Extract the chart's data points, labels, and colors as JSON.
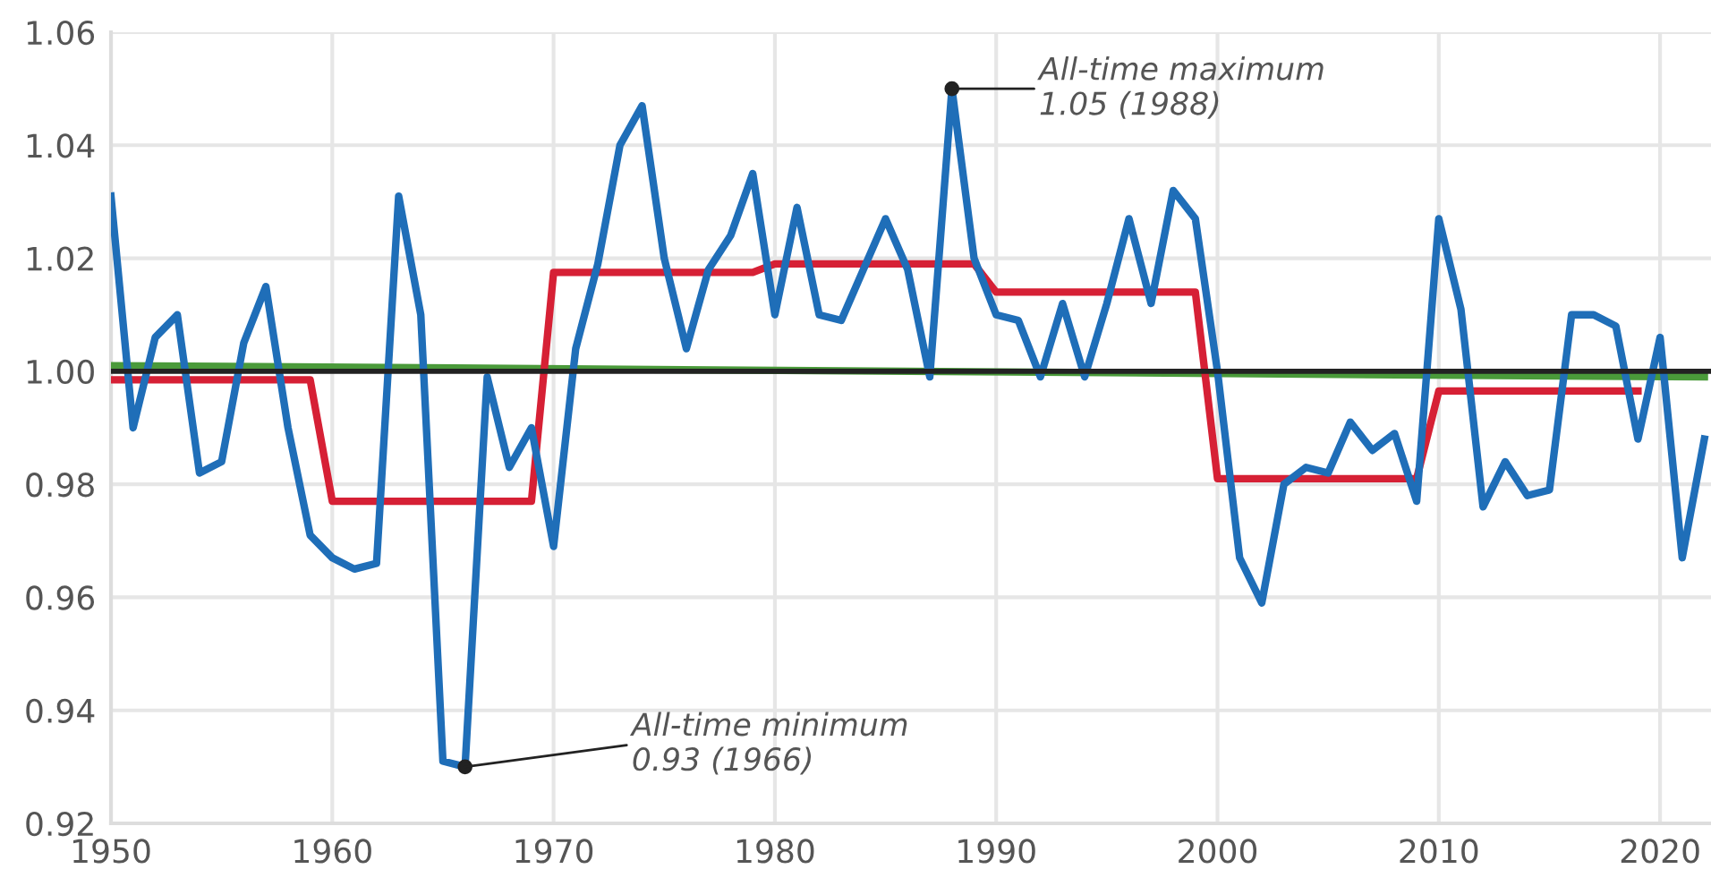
{
  "chart_data": {
    "type": "line",
    "x": [
      1950,
      1951,
      1952,
      1953,
      1954,
      1955,
      1956,
      1957,
      1958,
      1959,
      1960,
      1961,
      1962,
      1963,
      1964,
      1965,
      1966,
      1967,
      1968,
      1969,
      1970,
      1971,
      1972,
      1973,
      1974,
      1975,
      1976,
      1977,
      1978,
      1979,
      1980,
      1981,
      1982,
      1983,
      1984,
      1985,
      1986,
      1987,
      1988,
      1989,
      1990,
      1991,
      1992,
      1993,
      1994,
      1995,
      1996,
      1997,
      1998,
      1999,
      2000,
      2001,
      2002,
      2003,
      2004,
      2005,
      2006,
      2007,
      2008,
      2009,
      2010,
      2011,
      2012,
      2013,
      2014,
      2015,
      2016,
      2017,
      2018,
      2019,
      2020,
      2021,
      2022
    ],
    "series": [
      {
        "color": "#1f6eb8",
        "values": [
          1.031,
          0.99,
          1.006,
          1.01,
          0.982,
          0.984,
          1.005,
          1.015,
          0.99,
          0.971,
          0.967,
          0.965,
          0.966,
          1.031,
          1.01,
          0.931,
          0.93,
          0.999,
          0.983,
          0.99,
          0.969,
          1.004,
          1.019,
          1.04,
          1.047,
          1.02,
          1.004,
          1.018,
          1.024,
          1.035,
          1.01,
          1.029,
          1.01,
          1.009,
          1.018,
          1.027,
          1.018,
          0.999,
          1.05,
          1.02,
          1.01,
          1.009,
          0.999,
          1.012,
          0.999,
          1.012,
          1.027,
          1.012,
          1.032,
          1.027,
          1.0,
          0.967,
          0.959,
          0.98,
          0.983,
          0.982,
          0.991,
          0.986,
          0.989,
          0.977,
          1.027,
          1.011,
          0.976,
          0.984,
          0.978,
          0.979,
          1.01,
          1.01,
          1.008,
          0.988,
          1.006,
          0.967,
          0.988
        ]
      },
      {
        "color": "#d62035",
        "values": [
          0.9985,
          0.9985,
          0.9985,
          0.9985,
          0.9985,
          0.9985,
          0.9985,
          0.9985,
          0.9985,
          0.9985,
          0.977,
          0.977,
          0.977,
          0.977,
          0.977,
          0.977,
          0.977,
          0.977,
          0.977,
          0.977,
          1.0175,
          1.0175,
          1.0175,
          1.0175,
          1.0175,
          1.0175,
          1.0175,
          1.0175,
          1.0175,
          1.0175,
          1.019,
          1.019,
          1.019,
          1.019,
          1.019,
          1.019,
          1.019,
          1.019,
          1.019,
          1.019,
          1.014,
          1.014,
          1.014,
          1.014,
          1.014,
          1.014,
          1.014,
          1.014,
          1.014,
          1.014,
          0.981,
          0.981,
          0.981,
          0.981,
          0.981,
          0.981,
          0.981,
          0.981,
          0.981,
          0.981,
          0.9965,
          0.9965,
          0.9965,
          0.9965,
          0.9965,
          0.9965,
          0.9965,
          0.9965,
          0.9965,
          0.9965,
          null,
          null,
          null
        ]
      },
      {
        "color": "#4a9a3a",
        "x": [
          1950,
          2022
        ],
        "values": [
          1.001,
          0.999
        ]
      }
    ],
    "ref_lines": [
      {
        "axis": "y",
        "value": 1.0,
        "color": "#222222"
      }
    ],
    "annotations": [
      {
        "text": "All-time maximum\n1.05 (1988)",
        "x": 1988,
        "y": 1.05
      },
      {
        "text": "All-time minimum\n0.93 (1966)",
        "x": 1966,
        "y": 0.93
      }
    ],
    "xlim": [
      1950,
      2022.3
    ],
    "ylim": [
      0.92,
      1.06
    ],
    "xticks": [
      1950,
      1960,
      1970,
      1980,
      1990,
      2000,
      2010,
      2020
    ],
    "yticks": [
      {
        "value": 0.92,
        "label": "0.92"
      },
      {
        "value": 0.94,
        "label": "0.94"
      },
      {
        "value": 0.96,
        "label": "0.96"
      },
      {
        "value": 0.98,
        "label": "0.98"
      },
      {
        "value": 1.0,
        "label": "1.00"
      },
      {
        "value": 1.02,
        "label": "1.02"
      },
      {
        "value": 1.04,
        "label": "1.04"
      },
      {
        "value": 1.06,
        "label": "1.06"
      }
    ],
    "grid": true,
    "legend": false
  }
}
